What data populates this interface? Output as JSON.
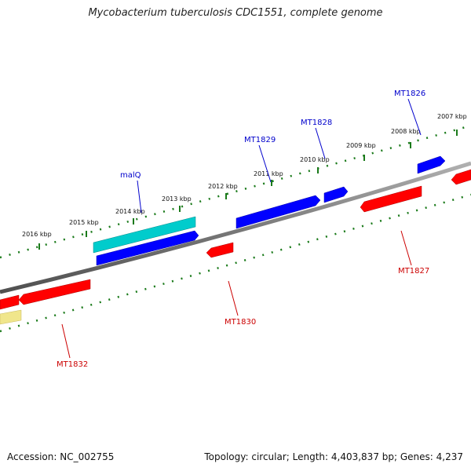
{
  "title": "Mycobacterium tuberculosis CDC1551, complete genome",
  "accession_text": "Accession: NC_002755",
  "info_text": "Topology: circular; Length: 4,403,837 bp; Genes: 4,237",
  "colors": {
    "backbone": "#808080",
    "tick": "#1a7a1a",
    "forward_gene": "#0000ff",
    "reverse_gene": "#ff0000",
    "rna_gene": "#00cccc",
    "other_feature": "#f0e68c",
    "forward_label": "#0000cc",
    "reverse_label": "#cc0000"
  },
  "tick_labels": [
    {
      "id": "2016",
      "text": "2016 kbp"
    },
    {
      "id": "2015",
      "text": "2015 kbp"
    },
    {
      "id": "2014",
      "text": "2014 kbp"
    },
    {
      "id": "2013",
      "text": "2013 kbp"
    },
    {
      "id": "2012",
      "text": "2012 kbp"
    },
    {
      "id": "2011",
      "text": "2011 kbp"
    },
    {
      "id": "2010",
      "text": "2010 kbp"
    },
    {
      "id": "2009",
      "text": "2009 kbp"
    },
    {
      "id": "2008",
      "text": "2008 kbp"
    },
    {
      "id": "2007",
      "text": "2007 kbp"
    }
  ],
  "gene_labels": [
    {
      "id": "malq",
      "text": "malQ"
    },
    {
      "id": "mt1829",
      "text": "MT1829"
    },
    {
      "id": "mt1828",
      "text": "MT1828"
    },
    {
      "id": "mt1826",
      "text": "MT1826"
    },
    {
      "id": "mt1827",
      "text": "MT1827"
    },
    {
      "id": "mt1830",
      "text": "MT1830"
    },
    {
      "id": "mt1832",
      "text": "MT1832"
    }
  ]
}
